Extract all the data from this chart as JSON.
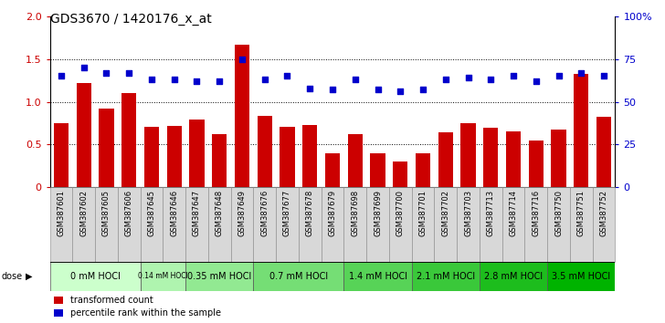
{
  "title": "GDS3670 / 1420176_x_at",
  "samples": [
    "GSM387601",
    "GSM387602",
    "GSM387605",
    "GSM387606",
    "GSM387645",
    "GSM387646",
    "GSM387647",
    "GSM387648",
    "GSM387649",
    "GSM387676",
    "GSM387677",
    "GSM387678",
    "GSM387679",
    "GSM387698",
    "GSM387699",
    "GSM387700",
    "GSM387701",
    "GSM387702",
    "GSM387703",
    "GSM387713",
    "GSM387714",
    "GSM387716",
    "GSM387750",
    "GSM387751",
    "GSM387752"
  ],
  "bar_values": [
    0.75,
    1.22,
    0.92,
    1.1,
    0.71,
    0.72,
    0.79,
    0.62,
    1.67,
    0.84,
    0.71,
    0.73,
    0.4,
    0.62,
    0.4,
    0.3,
    0.4,
    0.64,
    0.75,
    0.7,
    0.65,
    0.55,
    0.67,
    1.33,
    0.82
  ],
  "dot_values_pct": [
    65,
    70,
    67,
    67,
    63,
    63,
    62,
    62,
    75,
    63,
    65,
    58,
    57,
    63,
    57,
    56,
    57,
    63,
    64,
    63,
    65,
    62,
    65,
    67,
    65
  ],
  "dose_groups": [
    {
      "label": "0 mM HOCl",
      "start": 0,
      "end": 4
    },
    {
      "label": "0.14 mM HOCl",
      "start": 4,
      "end": 6
    },
    {
      "label": "0.35 mM HOCl",
      "start": 6,
      "end": 9
    },
    {
      "label": "0.7 mM HOCl",
      "start": 9,
      "end": 13
    },
    {
      "label": "1.4 mM HOCl",
      "start": 13,
      "end": 16
    },
    {
      "label": "2.1 mM HOCl",
      "start": 16,
      "end": 19
    },
    {
      "label": "2.8 mM HOCl",
      "start": 19,
      "end": 22
    },
    {
      "label": "3.5 mM HOCl",
      "start": 22,
      "end": 25
    }
  ],
  "ylim": [
    0,
    2
  ],
  "yticks_left": [
    0,
    0.5,
    1.0,
    1.5,
    2.0
  ],
  "yticks_right": [
    0,
    25,
    50,
    75,
    100
  ],
  "right_ylabels": [
    "0",
    "25",
    "50",
    "75",
    "100%"
  ],
  "bar_color": "#cc0000",
  "dot_color": "#0000cc",
  "legend_bar": "transformed count",
  "legend_dot": "percentile rank within the sample",
  "title_fontsize": 10,
  "axis_fontsize": 8,
  "label_fontsize": 6,
  "dose_fontsize": 7
}
